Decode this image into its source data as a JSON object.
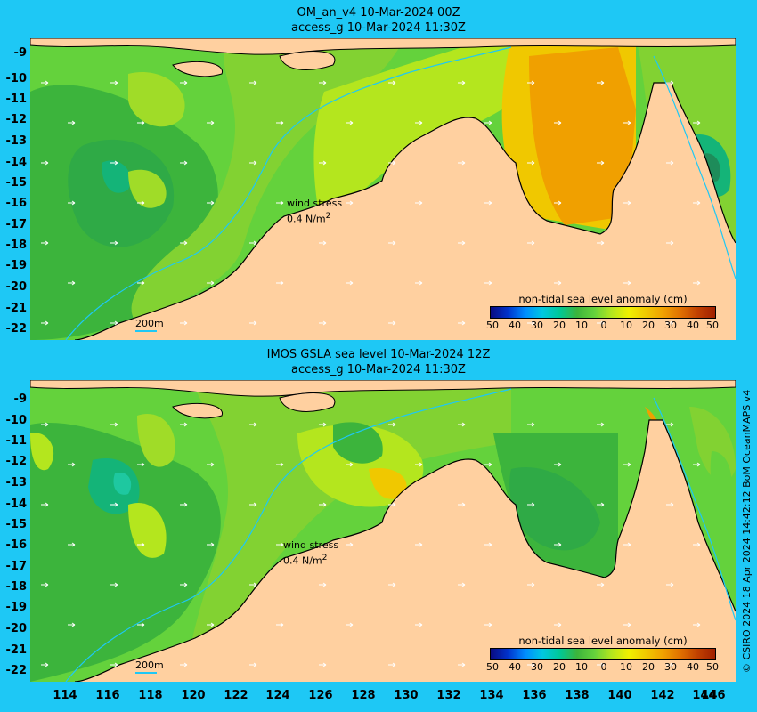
{
  "top_panel": {
    "title_line1": "OM_an_v4  10-Mar-2024 00Z",
    "title_line2": "access_g 10-Mar-2024 11:30Z"
  },
  "bottom_panel": {
    "title_line1": "IMOS GSLA sea level  10-Mar-2024 12Z",
    "title_line2": "access_g 10-Mar-2024 11:30Z"
  },
  "axes": {
    "lat_ticks": [
      "-9",
      "-10",
      "-11",
      "-12",
      "-13",
      "-14",
      "-15",
      "-16",
      "-17",
      "-18",
      "-19",
      "-20",
      "-21",
      "-22"
    ],
    "lon_ticks": [
      "114",
      "116",
      "118",
      "120",
      "122",
      "124",
      "126",
      "128",
      "130",
      "132",
      "134",
      "136",
      "138",
      "140",
      "142",
      "144",
      "146"
    ]
  },
  "legend": {
    "title": "non-tidal sea level anomaly (cm)",
    "ticks": [
      "50",
      "40",
      "30",
      "20",
      "10",
      "0",
      "10",
      "20",
      "30",
      "40",
      "50"
    ],
    "colors": [
      "#0a0a80",
      "#0033cc",
      "#008cff",
      "#00c8e0",
      "#00c896",
      "#3cb43c",
      "#64d23c",
      "#b4e61e",
      "#f0f000",
      "#f0c800",
      "#f0a000",
      "#e07000",
      "#c04000",
      "#a02000"
    ]
  },
  "wind_key": {
    "label": "wind stress",
    "value": "0.4 N/m",
    "unit_sup": "2"
  },
  "scale_key": {
    "label": "200m"
  },
  "credit": "© CSIRO 2024   18 Apr 2024 14:42:12 BoM OceanMAPS v4",
  "colors": {
    "background": "#1ec8f5",
    "land": "#ffd0a0",
    "contour": "#1ec8f5"
  }
}
